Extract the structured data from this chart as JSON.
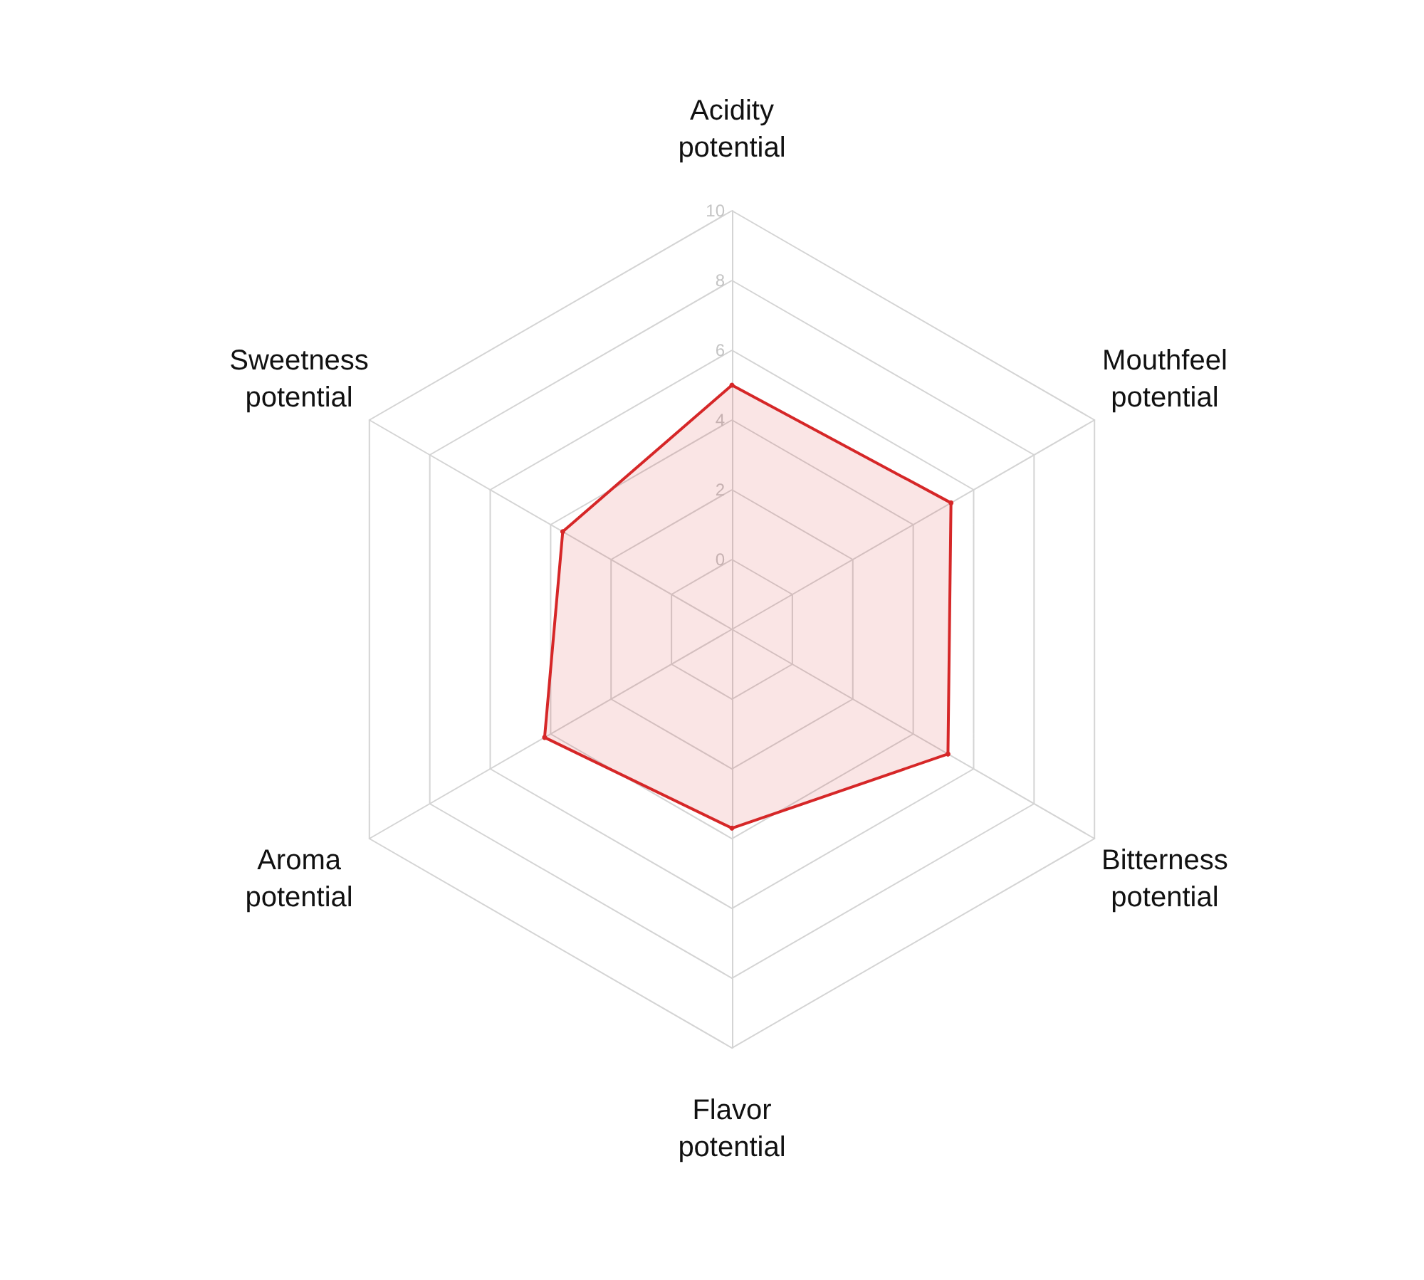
{
  "chart_data": {
    "type": "radar",
    "categories": [
      "Acidity potential",
      "Mouthfeel potential",
      "Bitterness potential",
      "Flavor potential",
      "Aroma potential",
      "Sweetness potential"
    ],
    "series": [
      {
        "color": "#d62728",
        "values": [
          5,
          5.25,
          5.15,
          3.7,
          4.2,
          3.6
        ]
      }
    ],
    "ylim": [
      -2,
      10
    ],
    "yticks": [
      0,
      2,
      4,
      6,
      8,
      10
    ],
    "grid": true,
    "marker": "circle",
    "line_style": "solid"
  }
}
